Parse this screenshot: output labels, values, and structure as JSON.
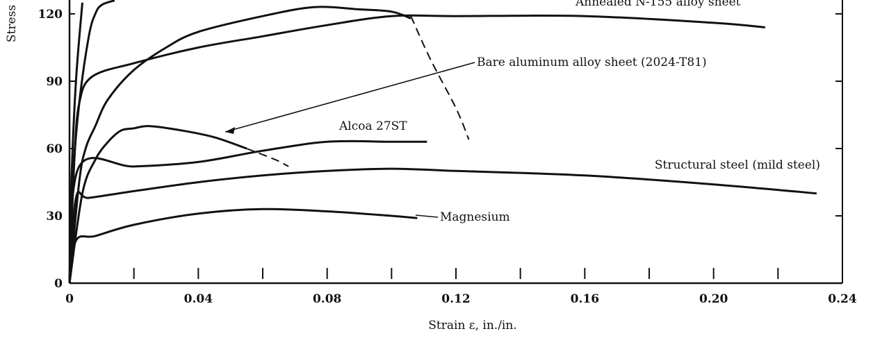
{
  "chart_data": {
    "type": "line",
    "xlabel": "Strain ε, in./in.",
    "ylabel": "Stress",
    "xlim": [
      0,
      0.24
    ],
    "ylim": [
      0,
      120
    ],
    "x_ticks": [
      "0",
      "0.04",
      "0.08",
      "0.12",
      "0.16",
      "0.20",
      "0.24"
    ],
    "y_ticks": [
      "0",
      "30",
      "60",
      "90",
      "120"
    ],
    "grid": false,
    "series": [
      {
        "name": "Annealed N-155 alloy sheet",
        "points": [
          [
            0,
            0
          ],
          [
            0.0015,
            55
          ],
          [
            0.003,
            80
          ],
          [
            0.007,
            92
          ],
          [
            0.02,
            98
          ],
          [
            0.04,
            105
          ],
          [
            0.06,
            110
          ],
          [
            0.08,
            115
          ],
          [
            0.1,
            119
          ],
          [
            0.12,
            119
          ],
          [
            0.16,
            119
          ],
          [
            0.2,
            116
          ],
          [
            0.216,
            114
          ]
        ]
      },
      {
        "name": "Bare aluminum alloy sheet (2024-T81)",
        "points": [
          [
            0,
            0
          ],
          [
            0.003,
            45
          ],
          [
            0.005,
            60
          ],
          [
            0.008,
            70
          ],
          [
            0.012,
            82
          ],
          [
            0.02,
            95
          ],
          [
            0.03,
            105
          ],
          [
            0.04,
            112
          ],
          [
            0.06,
            119
          ],
          [
            0.076,
            123
          ],
          [
            0.09,
            122
          ],
          [
            0.1,
            121
          ],
          [
            0.106,
            118
          ]
        ],
        "fracture_dashed": [
          [
            0.106,
            119
          ],
          [
            0.112,
            100
          ],
          [
            0.12,
            78
          ],
          [
            0.124,
            64
          ]
        ]
      },
      {
        "name": "Alcoa 27ST",
        "points": [
          [
            0,
            0
          ],
          [
            0.004,
            40
          ],
          [
            0.008,
            55
          ],
          [
            0.012,
            63
          ],
          [
            0.016,
            68
          ],
          [
            0.02,
            69
          ],
          [
            0.025,
            70
          ],
          [
            0.035,
            68
          ],
          [
            0.045,
            65
          ],
          [
            0.055,
            60
          ]
        ],
        "fracture_dashed": [
          [
            0.055,
            60
          ],
          [
            0.064,
            55
          ],
          [
            0.068,
            52
          ]
        ]
      },
      {
        "name": "Structural steel (mild steel)",
        "points": [
          [
            0,
            0
          ],
          [
            0.002,
            38
          ],
          [
            0.006,
            38
          ],
          [
            0.02,
            41
          ],
          [
            0.04,
            45
          ],
          [
            0.06,
            48
          ],
          [
            0.08,
            50
          ],
          [
            0.1,
            51
          ],
          [
            0.12,
            50
          ],
          [
            0.16,
            48
          ],
          [
            0.2,
            44
          ],
          [
            0.232,
            40
          ]
        ]
      },
      {
        "name": "Magnesium",
        "points": [
          [
            0,
            0
          ],
          [
            0.002,
            19
          ],
          [
            0.008,
            21
          ],
          [
            0.02,
            26
          ],
          [
            0.04,
            31
          ],
          [
            0.06,
            33
          ],
          [
            0.08,
            32
          ],
          [
            0.1,
            30
          ],
          [
            0.108,
            29
          ]
        ]
      },
      {
        "name": "",
        "points": [
          [
            0,
            0
          ],
          [
            0.003,
            52
          ],
          [
            0.02,
            52
          ],
          [
            0.04,
            54
          ],
          [
            0.06,
            59
          ],
          [
            0.08,
            63
          ],
          [
            0.1,
            63
          ],
          [
            0.111,
            63
          ]
        ]
      },
      {
        "name": "",
        "points": [
          [
            0,
            0
          ],
          [
            0.001,
            45
          ],
          [
            0.003,
            80
          ],
          [
            0.006,
            110
          ],
          [
            0.008,
            120
          ],
          [
            0.01,
            124
          ],
          [
            0.014,
            126
          ]
        ]
      },
      {
        "name": "",
        "points": [
          [
            0,
            0
          ],
          [
            0.0006,
            45
          ],
          [
            0.002,
            90
          ],
          [
            0.004,
            125
          ]
        ]
      }
    ],
    "annotations": [
      {
        "text": "Annealed N-155 alloy sheet",
        "target": [
          0.1,
          120
        ]
      },
      {
        "text": "Bare aluminum alloy sheet (2024-T81)",
        "target": [
          0.076,
          120
        ]
      },
      {
        "text": "Alcoa 27ST",
        "target": [
          0.048,
          68
        ]
      },
      {
        "text": "Structural steel (mild steel)"
      },
      {
        "text": "Magnesium"
      }
    ]
  }
}
